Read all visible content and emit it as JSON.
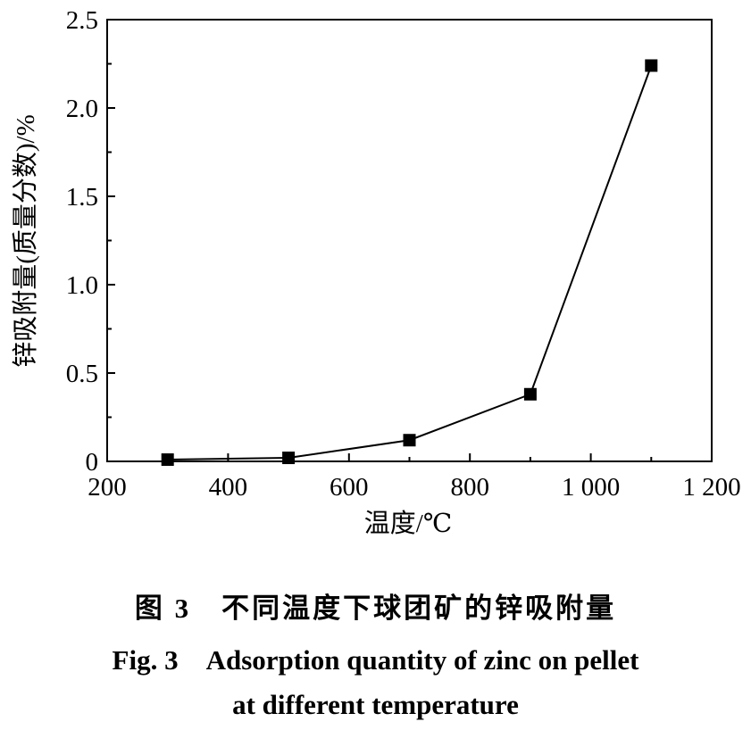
{
  "chart_data": {
    "type": "line",
    "x": [
      300,
      500,
      700,
      900,
      1100
    ],
    "series": [
      {
        "values": [
          0.01,
          0.02,
          0.12,
          0.38,
          2.24
        ],
        "marker": "square",
        "color": "#000000"
      }
    ],
    "xlabel": "温度/℃",
    "ylabel": "锌吸附量(质量分数)/%",
    "xlim": [
      200,
      1200
    ],
    "ylim": [
      0,
      2.5
    ],
    "x_ticks": [
      200,
      400,
      600,
      800,
      1000,
      1200
    ],
    "x_tick_labels": [
      "200",
      "400",
      "600",
      "800",
      "1 000",
      "1 200"
    ],
    "y_ticks": [
      0,
      0.5,
      1.0,
      1.5,
      2.0,
      2.5
    ],
    "y_tick_labels": [
      "0",
      "0.5",
      "1.0",
      "1.5",
      "2.0",
      "2.5"
    ],
    "grid": false
  },
  "caption": {
    "cn": "图 3　不同温度下球团矿的锌吸附量",
    "en_line1": "Fig. 3　Adsorption quantity of zinc on pellet",
    "en_line2": "at different temperature"
  }
}
